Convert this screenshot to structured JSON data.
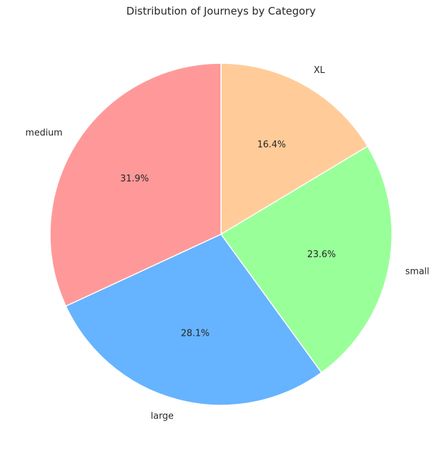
{
  "chart_data": {
    "type": "pie",
    "title": "Distribution of Journeys by Category",
    "slices": [
      {
        "label": "XL",
        "value": 16.4,
        "pct_text": "16.4%",
        "color": "#ffcc99"
      },
      {
        "label": "small",
        "value": 23.6,
        "pct_text": "23.6%",
        "color": "#99ff99"
      },
      {
        "label": "large",
        "value": 28.1,
        "pct_text": "28.1%",
        "color": "#66b3ff"
      },
      {
        "label": "medium",
        "value": 31.9,
        "pct_text": "31.9%",
        "color": "#ff9999"
      }
    ],
    "start_angle_deg": 90,
    "direction": "clockwise",
    "legend": "none"
  }
}
